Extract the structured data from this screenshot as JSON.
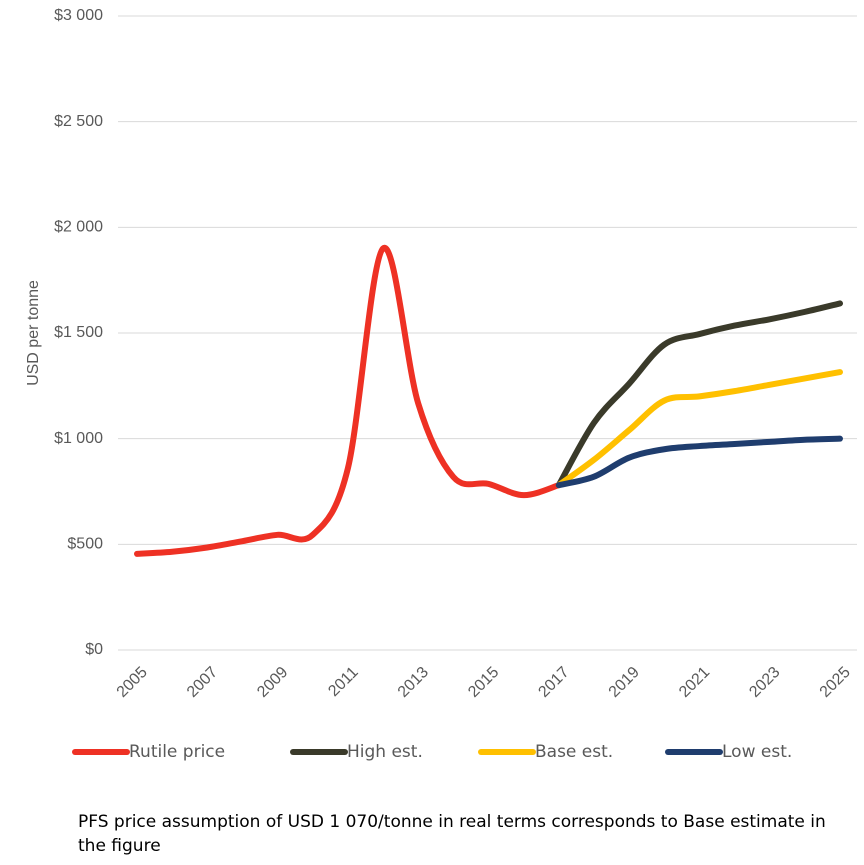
{
  "chart_data": {
    "type": "line",
    "y_label": "USD per tonne",
    "x": [
      2005,
      2006,
      2007,
      2008,
      2009,
      2010,
      2011,
      2012,
      2013,
      2014,
      2015,
      2016,
      2017,
      2018,
      2019,
      2020,
      2021,
      2022,
      2023,
      2024,
      2025
    ],
    "series": [
      {
        "name": "Rutile price",
        "color": "#ee3124",
        "values": [
          455,
          465,
          485,
          515,
          545,
          545,
          860,
          1900,
          1167,
          819,
          786,
          733,
          780,
          null,
          null,
          null,
          null,
          null,
          null,
          null,
          null
        ]
      },
      {
        "name": "High est.",
        "color": "#3a3a2a",
        "values": [
          null,
          null,
          null,
          null,
          null,
          null,
          null,
          null,
          null,
          null,
          null,
          null,
          780,
          1075,
          1260,
          1445,
          1495,
          1535,
          1565,
          1600,
          1640
        ]
      },
      {
        "name": "Base est.",
        "color": "#ffc000",
        "values": [
          null,
          null,
          null,
          null,
          null,
          null,
          null,
          null,
          null,
          null,
          null,
          null,
          780,
          900,
          1040,
          1180,
          1200,
          1225,
          1255,
          1285,
          1315
        ]
      },
      {
        "name": "Low est.",
        "color": "#1f3d6e",
        "values": [
          null,
          null,
          null,
          null,
          null,
          null,
          null,
          null,
          null,
          null,
          null,
          null,
          780,
          820,
          910,
          950,
          965,
          975,
          985,
          995,
          1000
        ]
      }
    ],
    "xlim": [
      2005,
      2025
    ],
    "xticks": [
      2005,
      2007,
      2009,
      2011,
      2013,
      2015,
      2017,
      2019,
      2021,
      2023,
      2025
    ],
    "ylim": [
      0,
      3000
    ],
    "yticks": [
      {
        "value": 0,
        "label": "$0"
      },
      {
        "value": 500,
        "label": "$500"
      },
      {
        "value": 1000,
        "label": "$1 000"
      },
      {
        "value": 1500,
        "label": "$1 500"
      },
      {
        "value": 2000,
        "label": "$2 000"
      },
      {
        "value": 2500,
        "label": "$2 500"
      },
      {
        "value": 3000,
        "label": "$3 000"
      }
    ],
    "grid": true,
    "legend": "bottom",
    "note": "PFS price assumption of USD 1 070/tonne in real terms corresponds to Base estimate in the figure"
  }
}
